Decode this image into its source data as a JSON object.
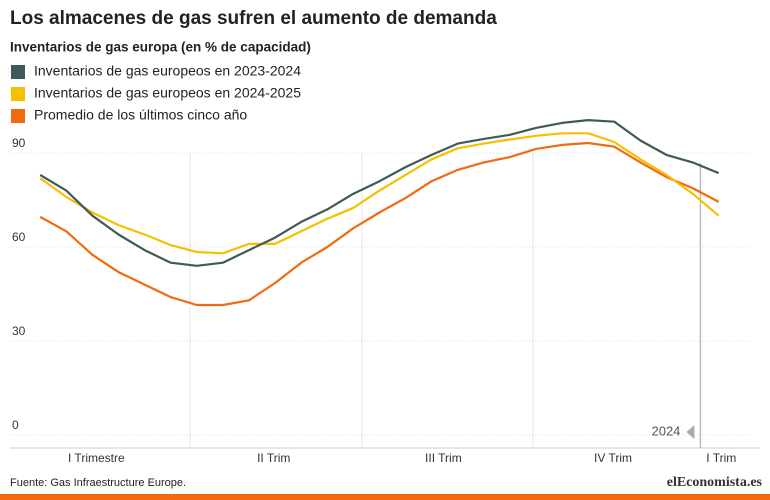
{
  "chart_data": {
    "type": "line",
    "title": "Los almacenes de gas sufren el aumento de demanda",
    "subtitle": "Inventarios de gas europa (en % de capacidad)",
    "source": "Fuente: Gas Infraestructure Europe.",
    "logo": "elEconomista.es",
    "x": [
      0,
      2,
      4,
      6,
      8,
      10,
      12,
      14,
      16,
      18,
      20,
      22,
      24,
      26,
      28,
      30,
      32,
      34,
      36,
      38,
      40,
      42,
      44,
      46,
      48,
      50,
      52
    ],
    "xlim": [
      -0.4,
      54.4
    ],
    "xticks": [
      {
        "value": 4.3,
        "label": "I Trimestre"
      },
      {
        "value": 17.9,
        "label": "II Trim"
      },
      {
        "value": 30.9,
        "label": "III Trim"
      },
      {
        "value": 43.9,
        "label": "IV Trim"
      },
      {
        "value": 52.2,
        "label": "I Trim"
      }
    ],
    "ylim": [
      0,
      90
    ],
    "yticks": [
      0,
      30,
      60,
      90
    ],
    "grid": true,
    "annotations": [
      {
        "text": "2024",
        "x": 50.6
      }
    ],
    "series": [
      {
        "name": "Inventarios de gas europeos en 2023-2024",
        "color": "#3f5a59",
        "values": [
          83,
          78,
          70,
          64,
          59,
          55,
          54,
          55,
          59,
          63,
          68,
          72,
          77,
          81,
          85.5,
          89.4,
          93,
          94.5,
          95.8,
          98,
          99.6,
          100.5,
          100,
          94,
          89.4,
          87,
          83.6
        ]
      },
      {
        "name": "Inventarios de gas europeos en 2024-2025",
        "color": "#f5c000",
        "values": [
          82,
          76,
          71,
          67,
          64,
          60.6,
          58.4,
          58,
          61,
          61,
          65,
          69,
          72.5,
          78,
          83,
          88,
          91.5,
          93,
          94.3,
          95.5,
          96.3,
          96.3,
          93.5,
          88,
          83,
          77,
          70
        ]
      },
      {
        "name": "Promedio de los últimos cinco año",
        "color": "#f26a0f",
        "values": [
          69.6,
          65,
          57.5,
          52,
          48,
          44,
          41.5,
          41.5,
          43,
          48.5,
          55,
          60,
          66,
          71,
          75.6,
          81,
          84.6,
          87,
          88.7,
          91.3,
          92.6,
          93.2,
          92,
          87,
          82.3,
          78.8,
          74.4
        ]
      }
    ]
  }
}
